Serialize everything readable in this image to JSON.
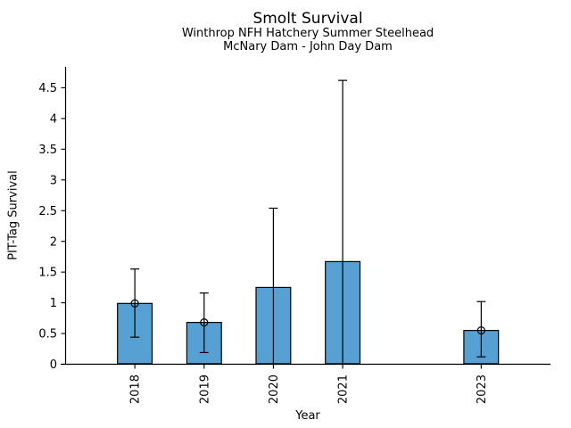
{
  "chart_data": {
    "type": "bar",
    "title": "Smolt Survival",
    "subtitle1": "Winthrop NFH Hatchery Summer Steelhead",
    "subtitle2": "McNary Dam - John Day Dam",
    "xlabel": "Year",
    "ylabel": "PIT-Tag Survival",
    "categories": [
      2018,
      2019,
      2020,
      2021,
      2023
    ],
    "values": [
      0.99,
      0.68,
      1.25,
      1.67,
      0.55
    ],
    "error_low": [
      0.44,
      0.19,
      0.0,
      0.0,
      0.12
    ],
    "error_high": [
      1.55,
      1.16,
      2.54,
      4.62,
      1.02
    ],
    "point_markers": [
      true,
      true,
      false,
      false,
      true
    ],
    "yticks": [
      0,
      0.5,
      1,
      1.5,
      2,
      2.5,
      3,
      3.5,
      4,
      4.5
    ],
    "ylim": [
      0,
      4.84
    ],
    "xlim": [
      2017,
      2024
    ],
    "bar_width_years": 0.5,
    "bar_color": "#56a0d3",
    "edge_color": "#000000",
    "axis_color": "#000000",
    "grid": false,
    "legend": null
  }
}
